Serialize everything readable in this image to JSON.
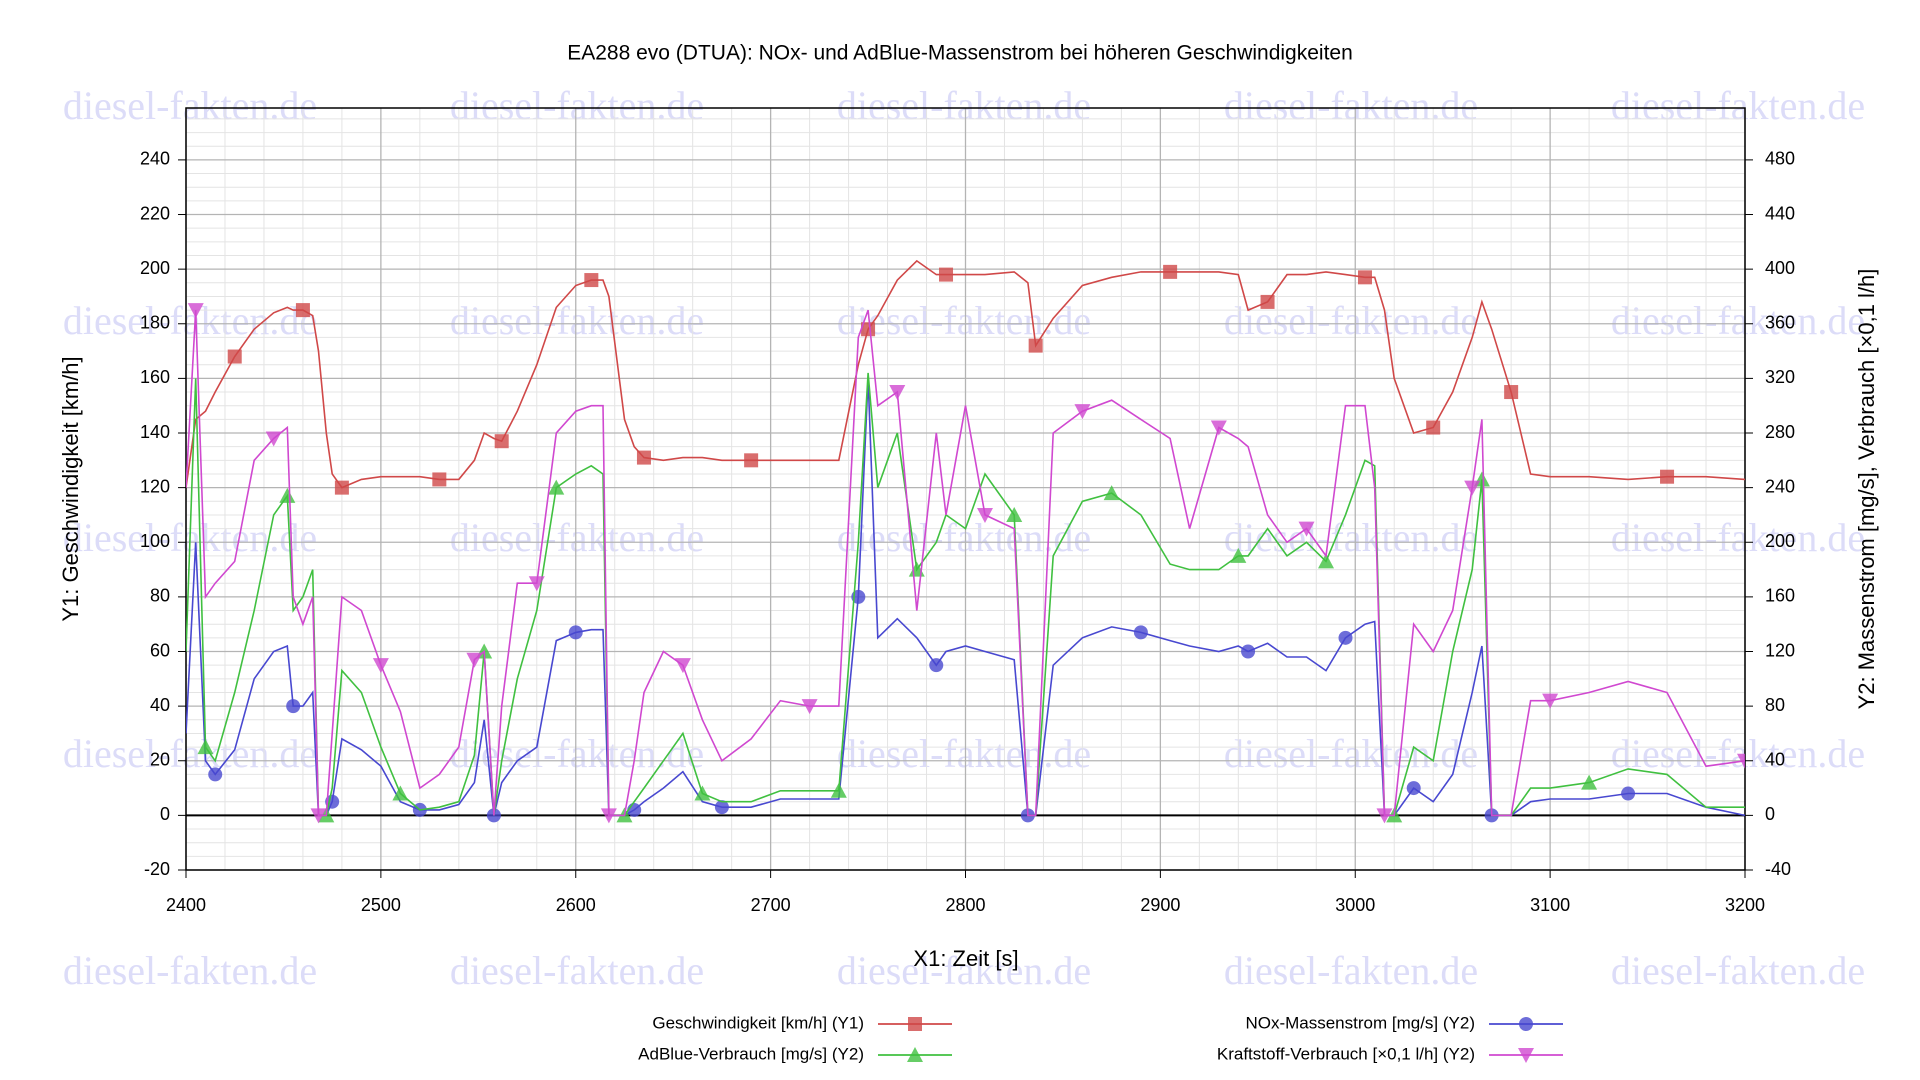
{
  "chart_data": {
    "type": "line",
    "title": "EA288 evo (DTUA): NOx- und AdBlue-Massenstrom bei höheren Geschwindigkeiten",
    "watermark": "diesel-fakten.de",
    "xlabel": "X1: Zeit [s]",
    "ylabel": "Y1: Geschwindigkeit [km/h]",
    "y2label": "Y2: Massenstrom [mg/s], Verbrauch [×0,1 l/h]",
    "xlim": [
      2400,
      3200
    ],
    "xticks": [
      2400,
      2500,
      2600,
      2700,
      2800,
      2900,
      3000,
      3100,
      3200
    ],
    "ylim": [
      -20,
      259
    ],
    "yticks": [
      -20,
      0,
      20,
      40,
      60,
      80,
      100,
      120,
      140,
      160,
      180,
      200,
      220,
      240
    ],
    "y2lim": [
      -40,
      518
    ],
    "y2ticks": [
      -40,
      0,
      40,
      80,
      120,
      160,
      200,
      240,
      280,
      320,
      360,
      400,
      440,
      480
    ],
    "grid": true,
    "legend": "bottom",
    "x": [
      2400,
      2405,
      2410,
      2415,
      2425,
      2435,
      2445,
      2452,
      2455,
      2460,
      2465,
      2468,
      2472,
      2475,
      2480,
      2490,
      2500,
      2510,
      2520,
      2530,
      2540,
      2548,
      2553,
      2558,
      2562,
      2570,
      2580,
      2590,
      2600,
      2608,
      2614,
      2617,
      2625,
      2630,
      2635,
      2645,
      2655,
      2665,
      2675,
      2690,
      2705,
      2720,
      2735,
      2745,
      2750,
      2755,
      2765,
      2775,
      2785,
      2790,
      2800,
      2810,
      2825,
      2832,
      2836,
      2845,
      2860,
      2875,
      2890,
      2905,
      2915,
      2930,
      2940,
      2945,
      2955,
      2965,
      2975,
      2985,
      2995,
      3005,
      3010,
      3015,
      3020,
      3030,
      3040,
      3050,
      3060,
      3065,
      3070,
      3080,
      3090,
      3100,
      3120,
      3140,
      3160,
      3180,
      3200
    ],
    "series": [
      {
        "name": "Geschwindigkeit [km/h] (Y1)",
        "color": "#d04848",
        "marker": "square",
        "axis": "y",
        "values": [
          120,
          145,
          148,
          155,
          168,
          178,
          184,
          186,
          185,
          185,
          183,
          170,
          140,
          125,
          120,
          123,
          124,
          124,
          124,
          123,
          123,
          130,
          140,
          138,
          137,
          148,
          165,
          186,
          194,
          196,
          196,
          190,
          145,
          135,
          131,
          130,
          131,
          131,
          130,
          130,
          130,
          130,
          130,
          165,
          178,
          183,
          196,
          203,
          198,
          198,
          198,
          198,
          199,
          195,
          172,
          182,
          194,
          197,
          199,
          199,
          199,
          199,
          198,
          185,
          188,
          198,
          198,
          199,
          198,
          197,
          197,
          185,
          160,
          140,
          142,
          155,
          175,
          188,
          178,
          155,
          125,
          124,
          124,
          123,
          124,
          124,
          123
        ]
      },
      {
        "name": "NOx-Massenstrom [mg/s] (Y2)",
        "color": "#4848d0",
        "marker": "circle",
        "axis": "y2",
        "values": [
          60,
          200,
          40,
          30,
          48,
          100,
          120,
          124,
          80,
          80,
          90,
          0,
          0,
          10,
          56,
          48,
          36,
          10,
          4,
          4,
          8,
          24,
          70,
          0,
          24,
          40,
          50,
          128,
          134,
          136,
          136,
          0,
          0,
          4,
          10,
          20,
          32,
          10,
          6,
          6,
          12,
          12,
          12,
          160,
          320,
          130,
          144,
          130,
          110,
          120,
          124,
          120,
          114,
          0,
          0,
          110,
          130,
          138,
          134,
          128,
          124,
          120,
          124,
          120,
          126,
          116,
          116,
          106,
          130,
          140,
          142,
          0,
          0,
          20,
          10,
          30,
          90,
          124,
          0,
          0,
          10,
          12,
          12,
          16,
          16,
          6,
          0
        ]
      },
      {
        "name": "AdBlue-Verbrauch [mg/s] (Y2)",
        "color": "#40c040",
        "marker": "triangle-up",
        "axis": "y2",
        "values": [
          120,
          320,
          50,
          40,
          90,
          150,
          220,
          234,
          150,
          160,
          180,
          0,
          0,
          20,
          106,
          90,
          50,
          16,
          4,
          6,
          10,
          44,
          120,
          0,
          40,
          100,
          150,
          240,
          250,
          256,
          250,
          0,
          0,
          10,
          20,
          40,
          60,
          16,
          10,
          10,
          18,
          18,
          18,
          200,
          324,
          240,
          280,
          180,
          200,
          220,
          210,
          250,
          220,
          0,
          0,
          190,
          230,
          236,
          220,
          184,
          180,
          180,
          190,
          190,
          210,
          190,
          200,
          186,
          220,
          260,
          256,
          0,
          0,
          50,
          40,
          120,
          180,
          246,
          0,
          0,
          20,
          20,
          24,
          34,
          30,
          6,
          6
        ]
      },
      {
        "name": "Kraftstoff-Verbrauch [×0,1 l/h] (Y2)",
        "color": "#d048d0",
        "marker": "triangle-down",
        "axis": "y2",
        "values": [
          240,
          370,
          160,
          170,
          186,
          260,
          276,
          284,
          160,
          140,
          160,
          0,
          0,
          60,
          160,
          150,
          110,
          76,
          20,
          30,
          50,
          114,
          120,
          0,
          80,
          170,
          170,
          280,
          296,
          300,
          300,
          0,
          0,
          40,
          90,
          120,
          110,
          70,
          40,
          56,
          84,
          80,
          80,
          350,
          370,
          300,
          310,
          150,
          280,
          220,
          300,
          220,
          210,
          0,
          0,
          280,
          296,
          304,
          290,
          276,
          210,
          284,
          276,
          270,
          220,
          200,
          210,
          190,
          300,
          300,
          240,
          0,
          0,
          140,
          120,
          150,
          240,
          290,
          0,
          0,
          84,
          84,
          90,
          98,
          90,
          36,
          40
        ]
      }
    ]
  }
}
